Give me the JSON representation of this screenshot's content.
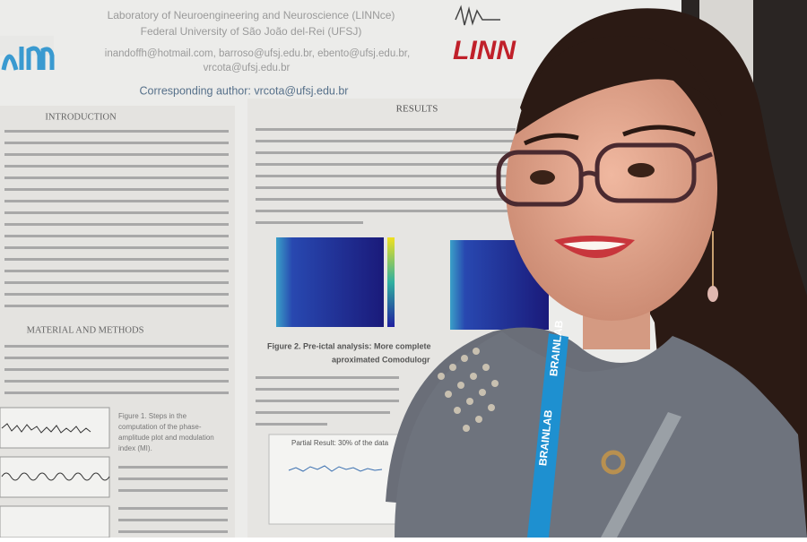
{
  "poster": {
    "header": {
      "lab": "Laboratory of Neuroengineering and Neuroscience (LINNce)",
      "university": "Federal University of São João del-Rei (UFSJ)",
      "emails": [
        "inandoffh@hotmail.com, barroso@ufsj.edu.br, ebento@ufsj.edu.br,",
        "vrcota@ufsj.edu.br"
      ],
      "corresponding": "Corresponding author: vrcota@ufsj.edu.br",
      "logo": "LINN"
    },
    "sections": {
      "introduction": "INTRODUCTION",
      "results": "RESULTS",
      "methods": "MATERIAL AND METHODS"
    },
    "figure1_caption": [
      "Figure 1. Steps in the",
      "computation of the phase-",
      "amplitude plot and modulation",
      "index (MI)."
    ],
    "figure2_caption": [
      "Figure 2. Pre-ictal analysis: More complete",
      "aproximated Comodulogr"
    ],
    "partial_result": "Partial Result: 30% of the data"
  },
  "lanyard": "BRAINLAB"
}
